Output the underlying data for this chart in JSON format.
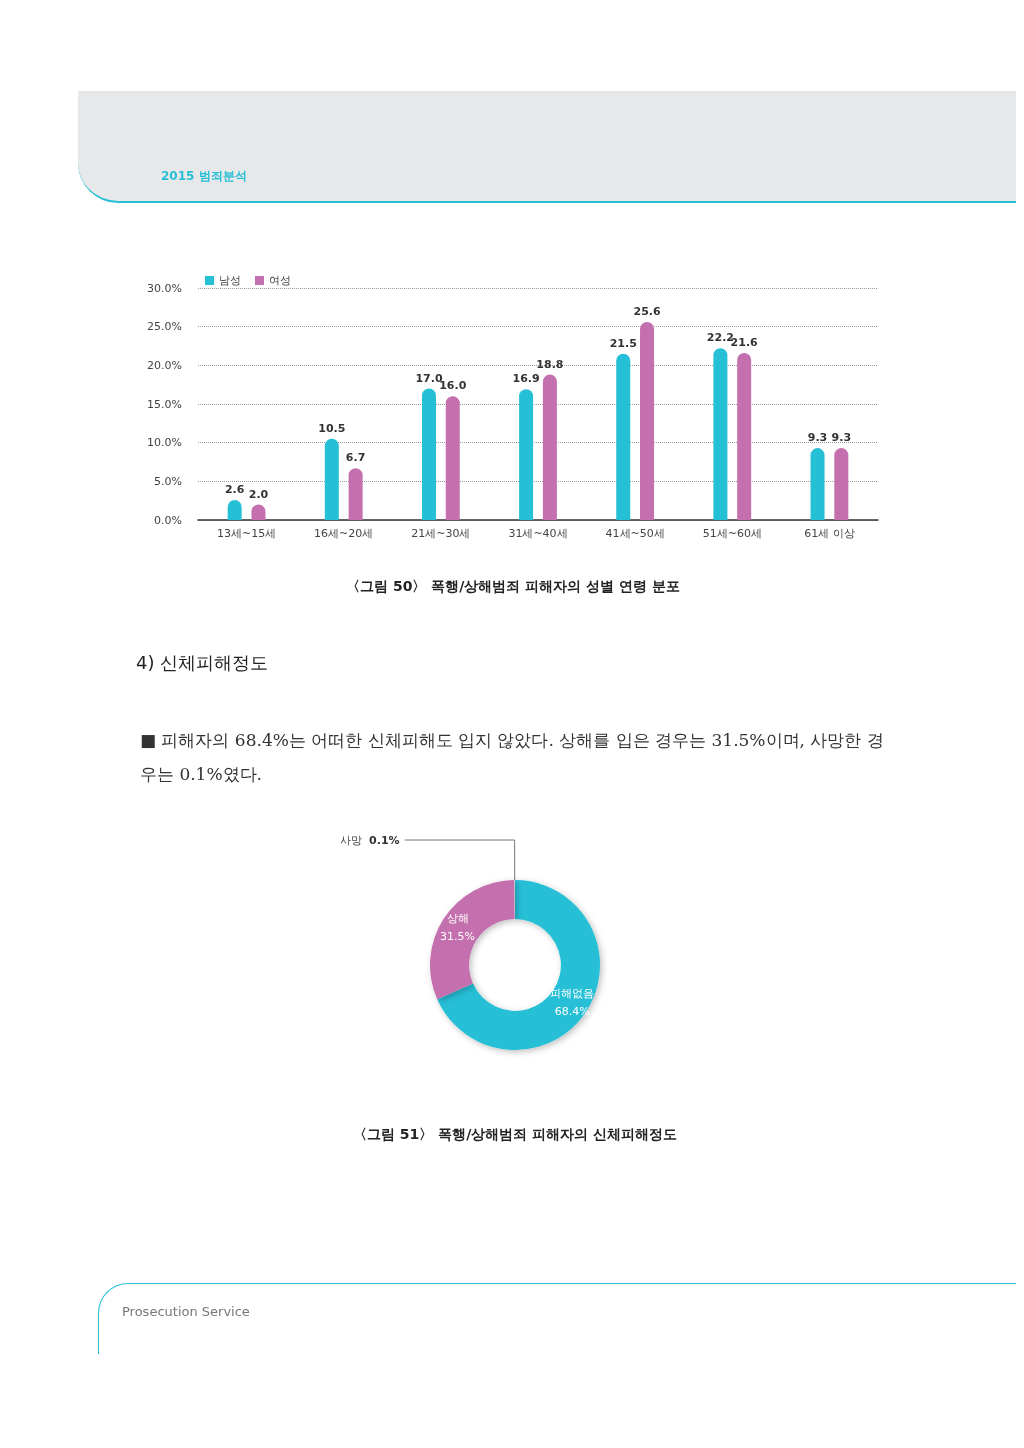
{
  "chart_data": [
    {
      "type": "bar",
      "title": "〈그림 50〉 폭행/상해범죄 피해자의 성별 연령 분포",
      "annotations": [
        "2015 범죄분석"
      ],
      "categories": [
        "13세~15세",
        "16세~20세",
        "21세~30세",
        "31세~40세",
        "41세~50세",
        "51세~60세",
        "61세 이상"
      ],
      "series": [
        {
          "name": "남성",
          "color": "#25bfd6",
          "values": [
            2.6,
            10.5,
            17.0,
            16.9,
            21.5,
            22.2,
            9.3
          ],
          "value_labels": [
            "2.6",
            "10.5",
            "17.0",
            "16.9",
            "21.5",
            "22.2",
            "9.3"
          ]
        },
        {
          "name": "여성",
          "color": "#c46fae",
          "values": [
            2.0,
            6.7,
            16.0,
            18.8,
            25.6,
            21.6,
            9.3
          ],
          "value_labels": [
            "2.0",
            "6.7",
            "16.0",
            "18.8",
            "25.6",
            "21.6",
            "9.3"
          ]
        }
      ],
      "ylim": [
        0,
        30
      ],
      "yticks": [
        {
          "value": 0,
          "label": "0.0%"
        },
        {
          "value": 5,
          "label": "5.0%"
        },
        {
          "value": 10,
          "label": "10.0%"
        },
        {
          "value": 15,
          "label": "15.0%"
        },
        {
          "value": 20,
          "label": "20.0%"
        },
        {
          "value": 25,
          "label": "25.0%"
        },
        {
          "value": 30,
          "label": "30.0%"
        }
      ],
      "grid": "y",
      "legend": "top left"
    },
    {
      "type": "donut",
      "title": "〈그림 51〉 폭행/상해범죄 피해자의 신체피해정도",
      "annotations": [
        "4) 신체피해정도",
        "■ 피해자의 68.4%는 어떠한 신체피해도 입지 않았다. 상해를 입은 경우는 31.5%이며, 사망한 경우는 0.1%였다.",
        "Prosecution Service"
      ],
      "categories": [
        "피해없음",
        "상해",
        "사망"
      ],
      "values": [
        68.4,
        31.5,
        0.1
      ],
      "value_labels": [
        "68.4%",
        "31.5%",
        "0.1%"
      ],
      "colors": [
        "#25bfd6",
        "#c46fae",
        "#d8d8d8"
      ]
    }
  ]
}
